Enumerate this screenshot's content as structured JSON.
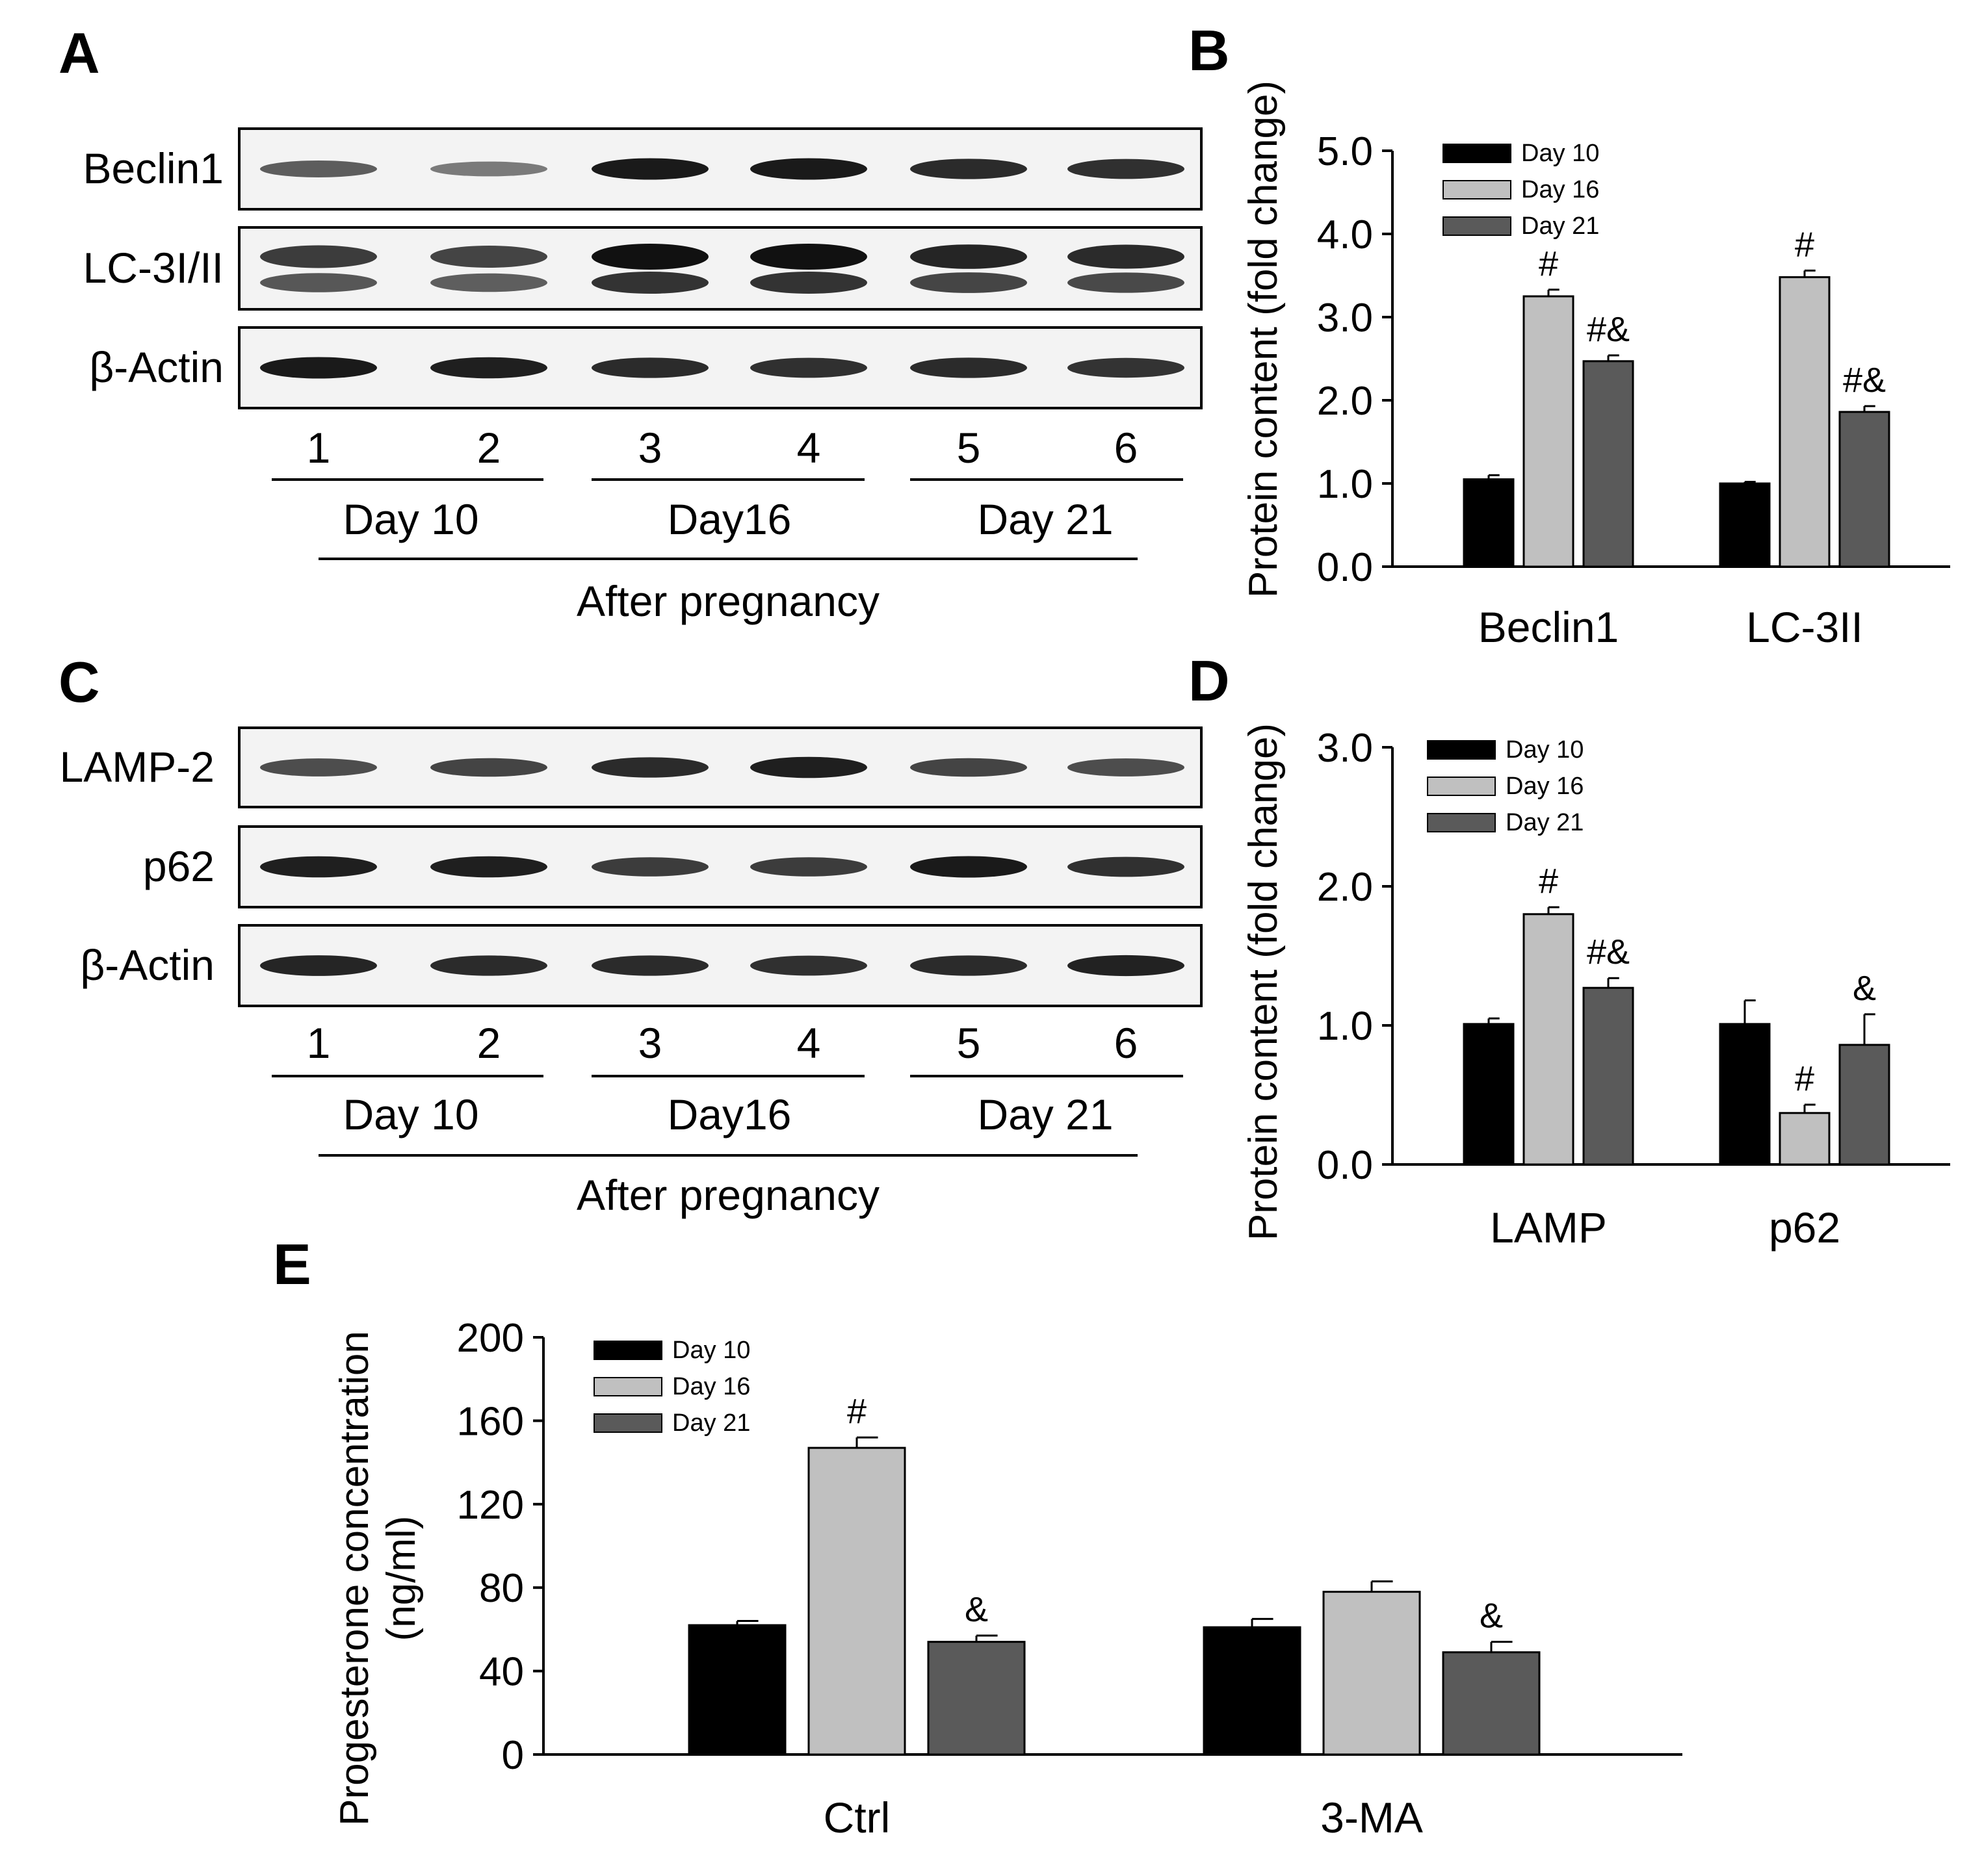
{
  "colors": {
    "day10": "#000000",
    "day16": "#c0c0c0",
    "day21": "#5a5a5a"
  },
  "panels": {
    "A": {
      "letter": "A",
      "blots": [
        {
          "label": "Beclin1",
          "band_type": "single",
          "intensities": [
            0.55,
            0.38,
            0.95,
            0.95,
            0.85,
            0.82
          ]
        },
        {
          "label": "LC-3I/II",
          "band_type": "double",
          "intensities": [
            0.75,
            0.7,
            1.0,
            1.0,
            0.88,
            0.85
          ]
        },
        {
          "label": "β-Actin",
          "band_type": "single",
          "intensities": [
            0.95,
            0.92,
            0.85,
            0.82,
            0.85,
            0.8
          ]
        }
      ],
      "lanes": [
        "1",
        "2",
        "3",
        "4",
        "5",
        "6"
      ],
      "groups": [
        "Day 10",
        "Day16",
        "Day 21"
      ],
      "footer": "After pregnancy"
    },
    "C": {
      "letter": "C",
      "blots": [
        {
          "label": "LAMP-2",
          "band_type": "single",
          "intensities": [
            0.65,
            0.7,
            0.85,
            0.92,
            0.7,
            0.65
          ]
        },
        {
          "label": "p62",
          "band_type": "single",
          "intensities": [
            0.92,
            0.92,
            0.75,
            0.75,
            0.95,
            0.82
          ]
        },
        {
          "label": "β-Actin",
          "band_type": "single",
          "intensities": [
            0.88,
            0.85,
            0.85,
            0.82,
            0.85,
            0.9
          ]
        }
      ],
      "lanes": [
        "1",
        "2",
        "3",
        "4",
        "5",
        "6"
      ],
      "groups": [
        "Day 10",
        "Day16",
        "Day 21"
      ],
      "footer": "After pregnancy"
    }
  },
  "chart_data": [
    {
      "panel": "B",
      "type": "bar",
      "ylabel": "Protein content (fold change)",
      "ylim": [
        0,
        5
      ],
      "yticks": [
        "0.0",
        "1.0",
        "2.0",
        "3.0",
        "4.0",
        "5.0"
      ],
      "categories": [
        "Beclin1",
        "LC-3II"
      ],
      "series": [
        {
          "name": "Day 10",
          "values": [
            1.05,
            1.0
          ],
          "errors": [
            0.05,
            0.02
          ],
          "sig": [
            "",
            ""
          ]
        },
        {
          "name": "Day 16",
          "values": [
            3.25,
            3.48
          ],
          "errors": [
            0.08,
            0.08
          ],
          "sig": [
            "#",
            "#"
          ]
        },
        {
          "name": "Day 21",
          "values": [
            2.47,
            1.86
          ],
          "errors": [
            0.07,
            0.07
          ],
          "sig": [
            "#&",
            "#&"
          ]
        }
      ],
      "legend": "top-left"
    },
    {
      "panel": "D",
      "type": "bar",
      "ylabel": "Protein content (fold change)",
      "ylim": [
        0,
        3
      ],
      "yticks": [
        "0.0",
        "1.0",
        "2.0",
        "3.0"
      ],
      "categories": [
        "LAMP",
        "p62"
      ],
      "series": [
        {
          "name": "Day 10",
          "values": [
            1.01,
            1.01
          ],
          "errors": [
            0.04,
            0.17
          ],
          "sig": [
            "",
            ""
          ]
        },
        {
          "name": "Day 16",
          "values": [
            1.8,
            0.37
          ],
          "errors": [
            0.05,
            0.06
          ],
          "sig": [
            "#",
            "#"
          ]
        },
        {
          "name": "Day 21",
          "values": [
            1.27,
            0.86
          ],
          "errors": [
            0.07,
            0.22
          ],
          "sig": [
            "#&",
            "&"
          ]
        }
      ],
      "legend": "top-left"
    },
    {
      "panel": "E",
      "type": "bar",
      "ylabel": [
        "Progesterone concentration",
        "(ng/ml)"
      ],
      "ylim": [
        0,
        200
      ],
      "yticks": [
        "0",
        "40",
        "80",
        "120",
        "160",
        "200"
      ],
      "categories": [
        "Ctrl",
        "3-MA"
      ],
      "series": [
        {
          "name": "Day 10",
          "values": [
            62,
            61
          ],
          "errors": [
            2,
            4
          ],
          "sig": [
            "",
            ""
          ]
        },
        {
          "name": "Day 16",
          "values": [
            147,
            78
          ],
          "errors": [
            5,
            5
          ],
          "sig": [
            "#",
            ""
          ]
        },
        {
          "name": "Day 21",
          "values": [
            54,
            49
          ],
          "errors": [
            3,
            5
          ],
          "sig": [
            "&",
            "&"
          ]
        }
      ],
      "legend": "top-left"
    }
  ]
}
